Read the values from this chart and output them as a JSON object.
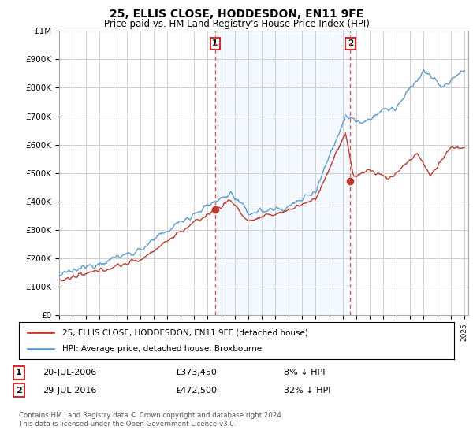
{
  "title": "25, ELLIS CLOSE, HODDESDON, EN11 9FE",
  "subtitle": "Price paid vs. HM Land Registry's House Price Index (HPI)",
  "xlim_start": 1995.0,
  "xlim_end": 2025.3,
  "ylim": [
    0,
    1000000
  ],
  "yticks": [
    0,
    100000,
    200000,
    300000,
    400000,
    500000,
    600000,
    700000,
    800000,
    900000,
    1000000
  ],
  "ytick_labels": [
    "£0",
    "£100K",
    "£200K",
    "£300K",
    "£400K",
    "£500K",
    "£600K",
    "£700K",
    "£800K",
    "£900K",
    "£1M"
  ],
  "sale1_year": 2006.55,
  "sale1_price": 373450,
  "sale1_label": "1",
  "sale1_date": "20-JUL-2006",
  "sale1_price_str": "£373,450",
  "sale1_pct": "8% ↓ HPI",
  "sale2_year": 2016.57,
  "sale2_price": 472500,
  "sale2_label": "2",
  "sale2_date": "29-JUL-2016",
  "sale2_price_str": "£472,500",
  "sale2_pct": "32% ↓ HPI",
  "legend_red_label": "25, ELLIS CLOSE, HODDESDON, EN11 9FE (detached house)",
  "legend_blue_label": "HPI: Average price, detached house, Broxbourne",
  "footer": "Contains HM Land Registry data © Crown copyright and database right 2024.\nThis data is licensed under the Open Government Licence v3.0.",
  "hpi_color": "#5b9bd5",
  "price_color": "#c0392b",
  "vline_color": "#e74c3c",
  "background_color": "#ffffff",
  "grid_color": "#d0d0d0",
  "shade_color": "#ddeeff"
}
